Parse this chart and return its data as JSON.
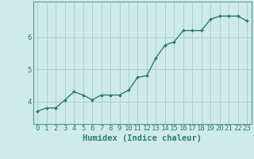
{
  "x": [
    0,
    1,
    2,
    3,
    4,
    5,
    6,
    7,
    8,
    9,
    10,
    11,
    12,
    13,
    14,
    15,
    16,
    17,
    18,
    19,
    20,
    21,
    22,
    23
  ],
  "y": [
    3.7,
    3.8,
    3.8,
    4.05,
    4.3,
    4.2,
    4.05,
    4.2,
    4.2,
    4.2,
    4.35,
    4.75,
    4.8,
    5.35,
    5.75,
    5.85,
    6.2,
    6.2,
    6.2,
    6.55,
    6.65,
    6.65,
    6.65,
    6.5
  ],
  "line_color": "#2e7d6e",
  "marker": "D",
  "marker_size": 2.0,
  "bg_color": "#ceeaea",
  "grid_color": "#a8cccc",
  "xlabel": "Humidex (Indice chaleur)",
  "xlabel_fontsize": 7.5,
  "yticks": [
    4,
    5,
    6
  ],
  "xticks": [
    0,
    1,
    2,
    3,
    4,
    5,
    6,
    7,
    8,
    9,
    10,
    11,
    12,
    13,
    14,
    15,
    16,
    17,
    18,
    19,
    20,
    21,
    22,
    23
  ],
  "ylim": [
    3.3,
    7.1
  ],
  "xlim": [
    -0.5,
    23.5
  ],
  "tick_fontsize": 6.5,
  "spine_color": "#5a9a8a",
  "line_width": 1.0
}
